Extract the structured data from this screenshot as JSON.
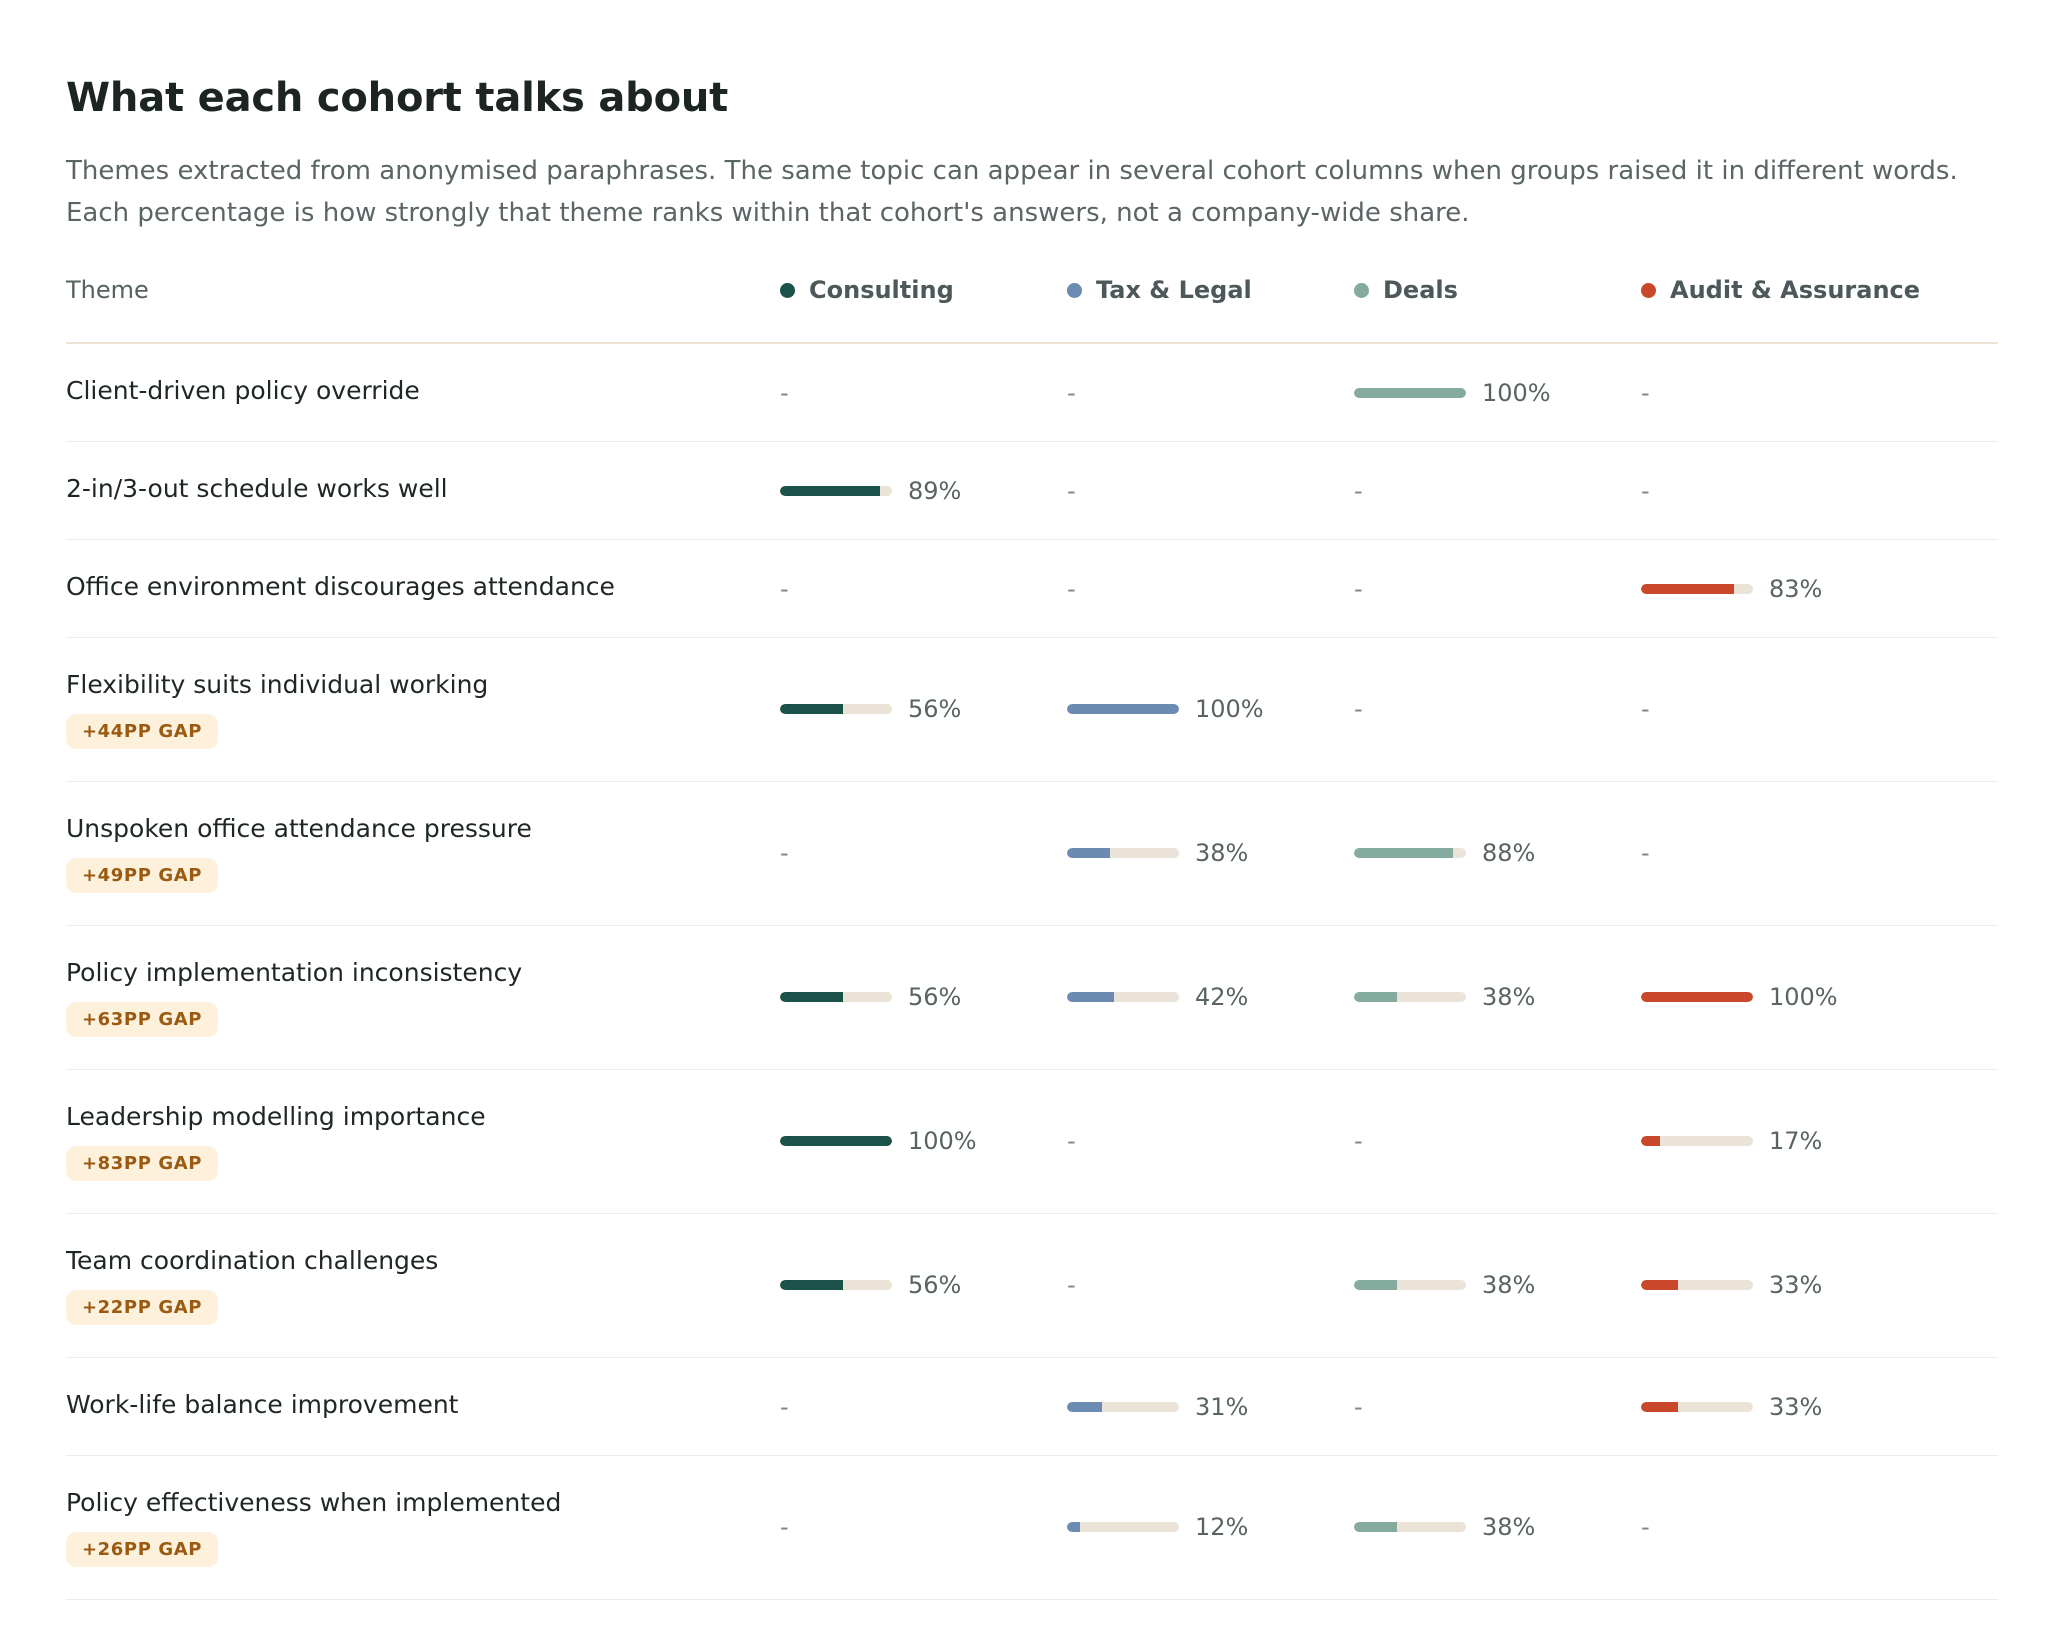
{
  "title": "What each cohort talks about",
  "subtitle": "Themes extracted from anonymised paraphrases. The same topic can appear in several cohort columns when groups raised it in different words. Each percentage is how strongly that theme ranks within that cohort's answers, not a company-wide share.",
  "table": {
    "theme_header": "Theme",
    "cohorts": [
      {
        "label": "Consulting",
        "color": "#1b5249"
      },
      {
        "label": "Tax & Legal",
        "color": "#6b8bb3"
      },
      {
        "label": "Deals",
        "color": "#84ab9d"
      },
      {
        "label": "Audit & Assurance",
        "color": "#c9472b"
      }
    ],
    "rows": [
      {
        "theme": "Client-driven policy override",
        "gap": "",
        "values": [
          null,
          null,
          100,
          null
        ],
        "labels": [
          "-",
          "-",
          "100%",
          "-"
        ]
      },
      {
        "theme": "2-in/3-out schedule works well",
        "gap": "",
        "values": [
          89,
          null,
          null,
          null
        ],
        "labels": [
          "89%",
          "-",
          "-",
          "-"
        ]
      },
      {
        "theme": "Office environment discourages attendance",
        "gap": "",
        "values": [
          null,
          null,
          null,
          83
        ],
        "labels": [
          "-",
          "-",
          "-",
          "83%"
        ]
      },
      {
        "theme": "Flexibility suits individual working",
        "gap": "+44PP GAP",
        "values": [
          56,
          100,
          null,
          null
        ],
        "labels": [
          "56%",
          "100%",
          "-",
          "-"
        ]
      },
      {
        "theme": "Unspoken office attendance pressure",
        "gap": "+49PP GAP",
        "values": [
          null,
          38,
          88,
          null
        ],
        "labels": [
          "-",
          "38%",
          "88%",
          "-"
        ]
      },
      {
        "theme": "Policy implementation inconsistency",
        "gap": "+63PP GAP",
        "values": [
          56,
          42,
          38,
          100
        ],
        "labels": [
          "56%",
          "42%",
          "38%",
          "100%"
        ]
      },
      {
        "theme": "Leadership modelling importance",
        "gap": "+83PP GAP",
        "values": [
          100,
          null,
          null,
          17
        ],
        "labels": [
          "100%",
          "-",
          "-",
          "17%"
        ]
      },
      {
        "theme": "Team coordination challenges",
        "gap": "+22PP GAP",
        "values": [
          56,
          null,
          38,
          33
        ],
        "labels": [
          "56%",
          "-",
          "38%",
          "33%"
        ]
      },
      {
        "theme": "Work-life balance improvement",
        "gap": "",
        "values": [
          null,
          31,
          null,
          33
        ],
        "labels": [
          "-",
          "31%",
          "-",
          "33%"
        ]
      },
      {
        "theme": "Policy effectiveness when implemented",
        "gap": "+26PP GAP",
        "values": [
          null,
          12,
          38,
          null
        ],
        "labels": [
          "-",
          "12%",
          "38%",
          "-"
        ]
      }
    ]
  }
}
